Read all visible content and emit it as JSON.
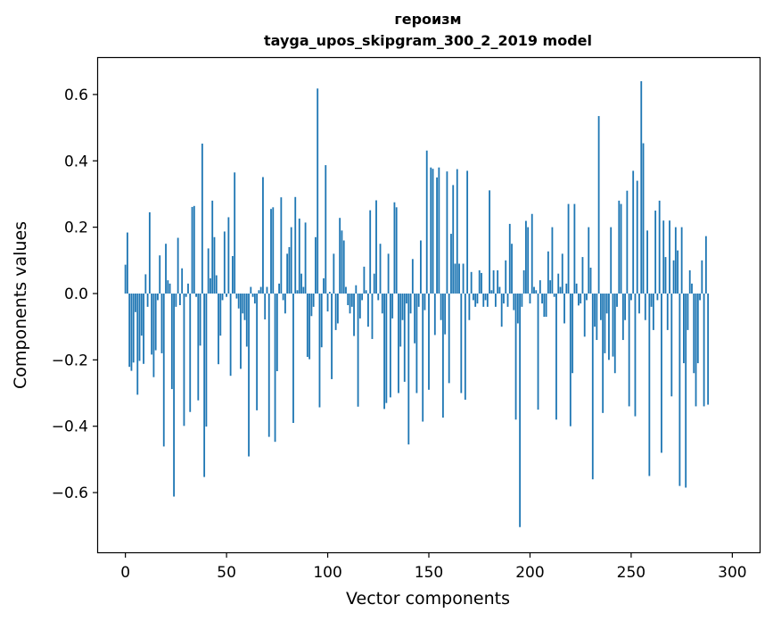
{
  "chart_data": {
    "type": "bar",
    "title": "героизм",
    "subtitle": "tayga_upos_skipgram_300_2_2019 model",
    "xlabel": "Vector components",
    "ylabel": "Components values",
    "xlim": [
      -13.5,
      313.5
    ],
    "ylim": [
      -0.78,
      0.71
    ],
    "x_ticks": [
      {
        "value": 0,
        "label": "0"
      },
      {
        "value": 50,
        "label": "50"
      },
      {
        "value": 100,
        "label": "100"
      },
      {
        "value": 150,
        "label": "150"
      },
      {
        "value": 200,
        "label": "200"
      },
      {
        "value": 250,
        "label": "250"
      },
      {
        "value": 300,
        "label": "300"
      }
    ],
    "y_ticks": [
      {
        "value": -0.6,
        "label": "−0.6"
      },
      {
        "value": -0.4,
        "label": "−0.4"
      },
      {
        "value": -0.2,
        "label": "−0.2"
      },
      {
        "value": 0.0,
        "label": "0.0"
      },
      {
        "value": 0.2,
        "label": "0.2"
      },
      {
        "value": 0.4,
        "label": "0.4"
      },
      {
        "value": 0.6,
        "label": "0.6"
      }
    ],
    "bar_color": "#1f77b4",
    "grid": false,
    "values": [
      0.087,
      0.184,
      -0.221,
      -0.233,
      -0.208,
      -0.056,
      -0.305,
      -0.203,
      -0.127,
      -0.212,
      0.058,
      -0.04,
      0.245,
      -0.184,
      -0.252,
      -0.171,
      -0.02,
      0.115,
      -0.18,
      -0.461,
      0.15,
      0.04,
      0.03,
      -0.288,
      -0.612,
      -0.04,
      0.168,
      -0.035,
      0.076,
      -0.399,
      -0.01,
      0.03,
      -0.357,
      0.261,
      0.264,
      -0.01,
      -0.322,
      -0.157,
      0.452,
      -0.553,
      -0.401,
      0.136,
      0.046,
      0.28,
      0.17,
      0.055,
      -0.213,
      -0.127,
      -0.02,
      0.187,
      -0.01,
      0.23,
      -0.248,
      0.113,
      0.365,
      -0.015,
      -0.045,
      -0.227,
      -0.06,
      -0.08,
      -0.16,
      -0.491,
      0.02,
      -0.01,
      -0.03,
      -0.352,
      0.01,
      0.02,
      0.351,
      -0.078,
      0.02,
      -0.432,
      0.255,
      0.26,
      -0.447,
      -0.234,
      0.03,
      0.29,
      -0.02,
      -0.06,
      0.12,
      0.14,
      0.2,
      -0.39,
      0.291,
      0.01,
      0.226,
      0.06,
      0.02,
      0.214,
      -0.191,
      -0.198,
      -0.068,
      -0.04,
      0.17,
      0.618,
      -0.343,
      -0.162,
      0.046,
      0.387,
      -0.054,
      0.005,
      -0.258,
      0.12,
      -0.11,
      -0.09,
      0.228,
      0.19,
      0.16,
      0.02,
      -0.035,
      -0.06,
      -0.04,
      -0.128,
      0.025,
      -0.341,
      -0.075,
      -0.02,
      0.081,
      0.01,
      -0.1,
      0.251,
      -0.137,
      0.06,
      0.281,
      -0.02,
      0.15,
      -0.06,
      -0.348,
      -0.33,
      0.12,
      -0.313,
      -0.075,
      0.275,
      0.26,
      -0.3,
      -0.16,
      -0.08,
      -0.266,
      -0.03,
      -0.455,
      -0.06,
      0.104,
      -0.15,
      -0.3,
      -0.04,
      0.16,
      -0.386,
      -0.05,
      0.431,
      -0.29,
      0.38,
      0.376,
      -0.125,
      0.35,
      0.38,
      -0.08,
      -0.374,
      -0.123,
      0.368,
      -0.27,
      0.18,
      0.327,
      0.09,
      0.375,
      0.09,
      -0.3,
      0.09,
      -0.32,
      0.37,
      -0.08,
      0.065,
      -0.02,
      -0.04,
      -0.03,
      0.07,
      0.062,
      -0.04,
      -0.02,
      -0.04,
      0.311,
      0.01,
      0.07,
      -0.04,
      0.07,
      0.02,
      -0.1,
      -0.03,
      0.1,
      -0.04,
      0.21,
      0.15,
      -0.05,
      -0.38,
      -0.09,
      -0.704,
      -0.04,
      0.07,
      0.219,
      0.2,
      -0.03,
      0.24,
      0.02,
      0.01,
      -0.35,
      0.04,
      -0.03,
      -0.07,
      -0.07,
      0.127,
      0.04,
      0.2,
      -0.01,
      -0.38,
      0.06,
      0.02,
      0.12,
      -0.09,
      0.03,
      0.27,
      -0.4,
      -0.24,
      0.27,
      0.03,
      -0.036,
      -0.03,
      0.11,
      -0.13,
      -0.02,
      0.2,
      0.078,
      -0.56,
      -0.1,
      -0.14,
      0.535,
      -0.08,
      -0.36,
      -0.18,
      -0.06,
      -0.2,
      0.2,
      -0.19,
      -0.24,
      -0.04,
      0.28,
      0.27,
      -0.14,
      -0.08,
      0.31,
      -0.34,
      -0.02,
      0.37,
      -0.37,
      0.34,
      -0.06,
      0.64,
      0.453,
      -0.08,
      0.19,
      -0.55,
      -0.04,
      -0.11,
      0.25,
      -0.02,
      0.28,
      -0.48,
      0.22,
      0.11,
      -0.11,
      0.22,
      -0.31,
      0.1,
      0.2,
      0.13,
      -0.58,
      0.2,
      -0.21,
      -0.585,
      -0.11,
      0.07,
      0.03,
      -0.24,
      -0.34,
      -0.21,
      -0.02,
      0.1,
      -0.34,
      0.173,
      -0.335
    ]
  }
}
